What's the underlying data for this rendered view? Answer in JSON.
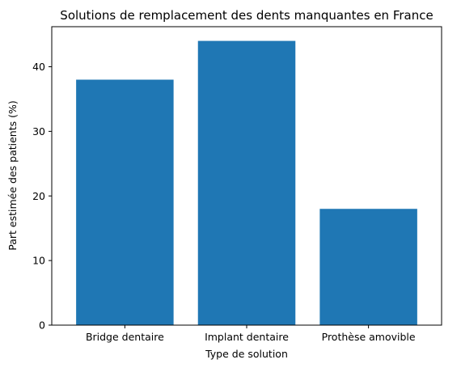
{
  "chart_data": {
    "type": "bar",
    "title": "Solutions de remplacement des dents manquantes en France",
    "xlabel": "Type de solution",
    "ylabel": "Part estimée des patients (%)",
    "categories": [
      "Bridge dentaire",
      "Implant dentaire",
      "Prothèse amovible"
    ],
    "values": [
      38,
      44,
      18
    ],
    "ylim": [
      0,
      46.2
    ],
    "yticks": [
      0,
      10,
      20,
      30,
      40
    ],
    "grid": false,
    "bar_color": "#1f77b4"
  }
}
